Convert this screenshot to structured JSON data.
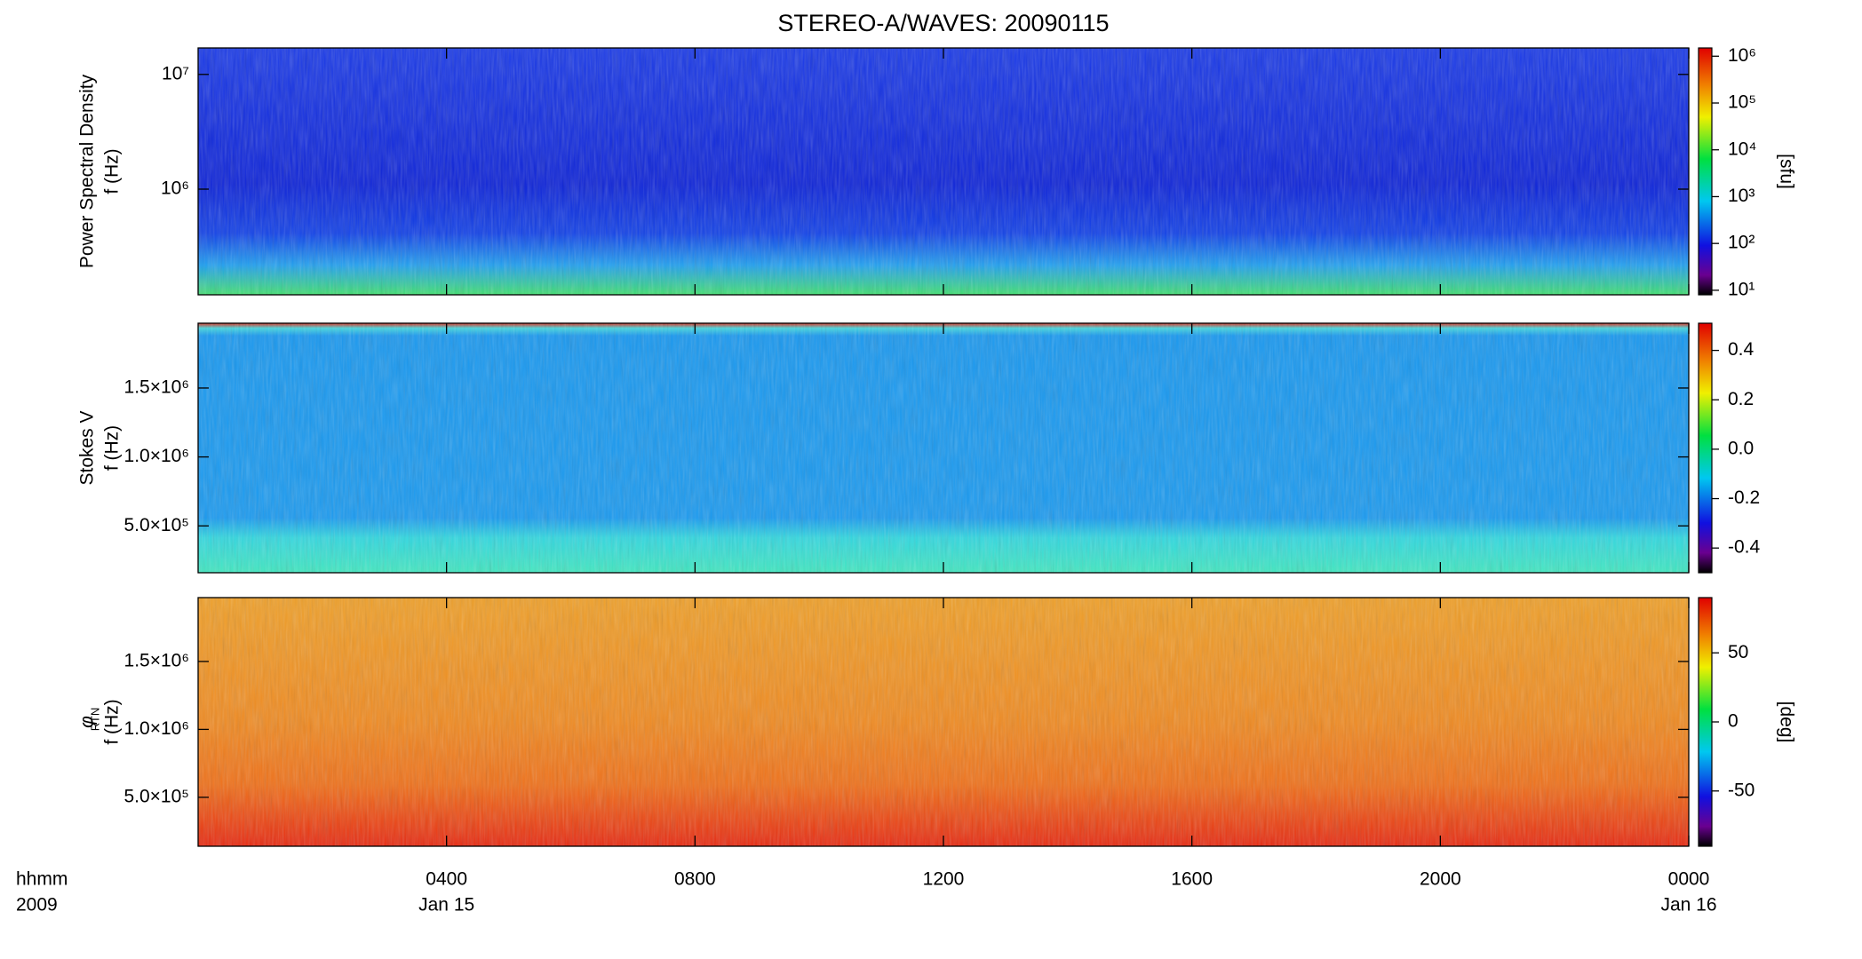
{
  "title": "STEREO-A/WAVES: 20090115",
  "x_axis": {
    "xlim": [
      0,
      24
    ],
    "xticks": [
      {
        "value": 4,
        "label": "0400"
      },
      {
        "value": 8,
        "label": "0800"
      },
      {
        "value": 12,
        "label": "1200"
      },
      {
        "value": 16,
        "label": "1600"
      },
      {
        "value": 20,
        "label": "2000"
      },
      {
        "value": 24,
        "label": "0000"
      }
    ],
    "date_labels": [
      {
        "value": 4,
        "label": "Jan 15"
      },
      {
        "value": 24,
        "label": "Jan 16"
      }
    ],
    "corner_labels": [
      "hhmm",
      "2009"
    ]
  },
  "chart_data": [
    {
      "type": "heatmap",
      "quantity": "Power Spectral Density",
      "ylabel": "f (Hz)",
      "yscale": "log",
      "ylim": [
        120000,
        17000000
      ],
      "yticks": [
        {
          "value": 1000000,
          "label": "10⁶"
        },
        {
          "value": 10000000,
          "label": "10⁷"
        }
      ],
      "colorbar": {
        "scale": "log",
        "lim": [
          8,
          1500000
        ],
        "label": "[sfu]",
        "ticks": [
          {
            "value": 10,
            "label": "10¹"
          },
          {
            "value": 100,
            "label": "10²"
          },
          {
            "value": 1000,
            "label": "10³"
          },
          {
            "value": 10000,
            "label": "10⁴"
          },
          {
            "value": 100000,
            "label": "10⁵"
          },
          {
            "value": 1000000,
            "label": "10⁶"
          }
        ]
      }
    },
    {
      "type": "heatmap",
      "quantity": "Stokes V",
      "ylabel": "f (Hz)",
      "yscale": "linear",
      "ylim": [
        160000,
        1970000
      ],
      "yticks": [
        {
          "value": 500000,
          "label": "5.0×10⁵"
        },
        {
          "value": 1000000,
          "label": "1.0×10⁶"
        },
        {
          "value": 1500000,
          "label": "1.5×10⁶"
        }
      ],
      "colorbar": {
        "scale": "linear",
        "lim": [
          -0.5,
          0.51
        ],
        "label": "",
        "ticks": [
          -0.4,
          -0.2,
          {
            "value": 0,
            "label": "0.0"
          },
          0.2,
          0.4
        ]
      }
    },
    {
      "type": "heatmap",
      "quantity": "φ",
      "quantity_subscript": "RTN",
      "ylabel": "f (Hz)",
      "yscale": "linear",
      "ylim": [
        140000,
        1970000
      ],
      "yticks": [
        {
          "value": 500000,
          "label": "5.0×10⁵"
        },
        {
          "value": 1000000,
          "label": "1.0×10⁶"
        },
        {
          "value": 1500000,
          "label": "1.5×10⁶"
        }
      ],
      "colorbar": {
        "scale": "linear",
        "lim": [
          -90,
          90
        ],
        "label": "[deg]",
        "ticks": [
          -50,
          0,
          50
        ]
      }
    }
  ]
}
